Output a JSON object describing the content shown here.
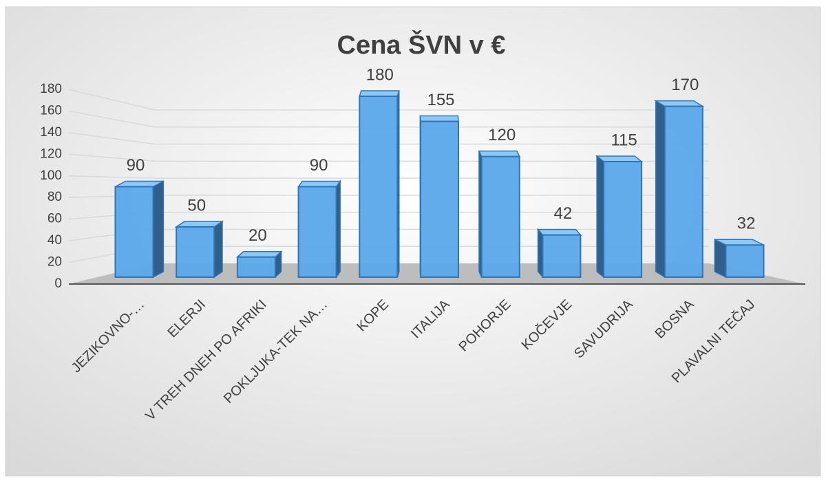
{
  "chart_data": {
    "type": "bar3d",
    "title": "Cena ŠVN v €",
    "categories": [
      "JEZIKOVNO-…",
      "ELERJI",
      "V TREH DNEH PO AFRIKI",
      "POKLJUKA-TEK NA…",
      "KOPE",
      "ITALIJA",
      "POHORJE",
      "KOČEVJE",
      "SAVUDRIJA",
      "BOSNA",
      "PLAVALNI TEČAJ"
    ],
    "values": [
      90,
      50,
      20,
      90,
      180,
      155,
      120,
      42,
      115,
      170,
      32
    ],
    "color": "#5ba8ea",
    "ylim": [
      0,
      180
    ],
    "yticks": [
      0,
      20,
      40,
      60,
      80,
      100,
      120,
      140,
      160,
      180
    ],
    "grid": true,
    "data_labels": true
  }
}
